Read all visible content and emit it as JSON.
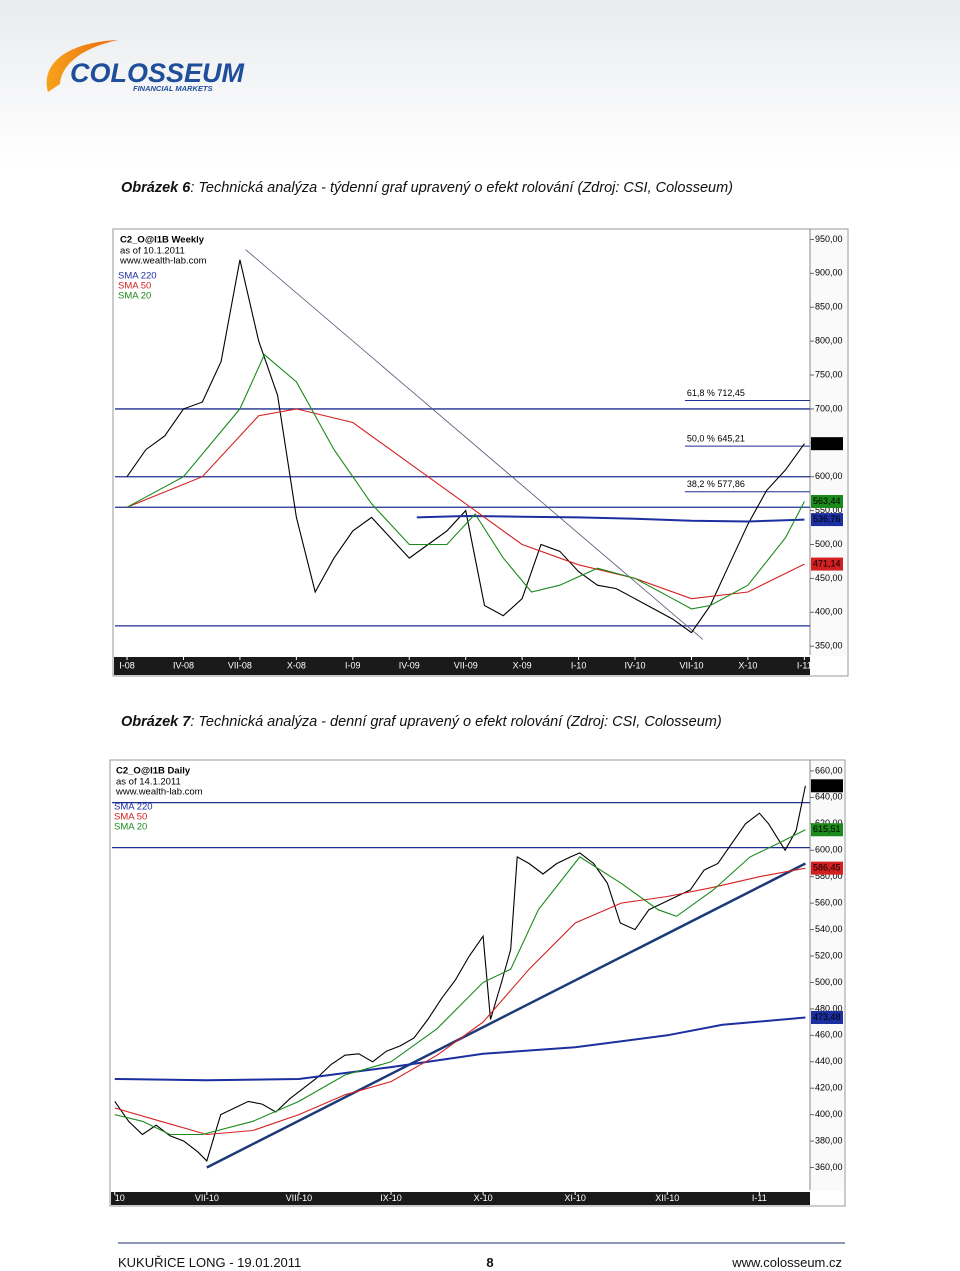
{
  "header": {
    "logo": "COLOSSEUM",
    "logo_sub": "FINANCIAL MARKETS"
  },
  "figures": [
    {
      "caption_label": "Obrázek 6",
      "caption": ": Technická analýza - týdenní graf upravený o efekt rolování (Zdroj: CSI, Colosseum)",
      "chart_data": {
        "type": "line",
        "title": "C2_O@I1B Weekly",
        "subtitle": "as of 10.1.2011",
        "source": "www.wealth-lab.com",
        "xlim": [
          -0.64,
          36.3
        ],
        "ylim": [
          337,
          961
        ],
        "xticks": [
          {
            "value": 0,
            "label": "I-08"
          },
          {
            "value": 3,
            "label": "IV-08"
          },
          {
            "value": 6,
            "label": "VII-08"
          },
          {
            "value": 9,
            "label": "X-08"
          },
          {
            "value": 12,
            "label": "I-09"
          },
          {
            "value": 15,
            "label": "IV-09"
          },
          {
            "value": 18,
            "label": "VII-09"
          },
          {
            "value": 21,
            "label": "X-09"
          },
          {
            "value": 24,
            "label": "I-10"
          },
          {
            "value": 27,
            "label": "IV-10"
          },
          {
            "value": 30,
            "label": "VII-10"
          },
          {
            "value": 33,
            "label": "X-10"
          },
          {
            "value": 36,
            "label": "I-11"
          }
        ],
        "yticks": [
          {
            "value": 350,
            "label": "350,00"
          },
          {
            "value": 400,
            "label": "400,00"
          },
          {
            "value": 450,
            "label": "450,00"
          },
          {
            "value": 500,
            "label": "500,00"
          },
          {
            "value": 550,
            "label": "550,00"
          },
          {
            "value": 600,
            "label": "600,00"
          },
          {
            "value": 650,
            "label": "650,00"
          },
          {
            "value": 700,
            "label": "700,00"
          },
          {
            "value": 750,
            "label": "750,00"
          },
          {
            "value": 800,
            "label": "800,00"
          },
          {
            "value": 850,
            "label": "850,00"
          },
          {
            "value": 900,
            "label": "900,00"
          },
          {
            "value": 950,
            "label": "950,00"
          }
        ],
        "series": [
          {
            "color": "#000000",
            "x": [
              0,
              1,
              2,
              3,
              4,
              5,
              6,
              7,
              8,
              9,
              10,
              11,
              12,
              13,
              14,
              15,
              16,
              17,
              18,
              19,
              20,
              21,
              22,
              23,
              24,
              25,
              26,
              27,
              28,
              29,
              30,
              31,
              32,
              33,
              34,
              35,
              36
            ],
            "values": [
              600,
              640,
              660,
              700,
              710,
              770,
              920,
              800,
              720,
              540,
              430,
              480,
              520,
              540,
              510,
              480,
              500,
              520,
              550,
              410,
              395,
              420,
              500,
              490,
              460,
              440,
              435,
              420,
              405,
              390,
              370,
              410,
              470,
              530,
              580,
              610,
              648.75
            ]
          },
          {
            "name": "SMA 220",
            "color": "#1c2fa0",
            "x": [
              15.4,
              18,
              21,
              24,
              27,
              30,
              33,
              36
            ],
            "values": [
              540,
              542,
              541,
              540,
              538,
              535,
              534,
              536.76
            ]
          },
          {
            "name": "SMA 50",
            "color": "#d42020",
            "x": [
              0,
              4,
              7,
              9,
              12,
              15,
              18,
              21,
              24,
              27,
              30,
              33,
              36
            ],
            "values": [
              555,
              600,
              690,
              700,
              680,
              620,
              560,
              500,
              470,
              450,
              420,
              430,
              471.14
            ]
          },
          {
            "name": "SMA 20",
            "color": "#1a8a1a",
            "x": [
              0,
              3,
              6,
              7.3,
              9,
              11,
              13,
              15,
              17,
              18.5,
              20,
              21.5,
              23,
              25,
              27,
              29,
              30,
              31,
              33,
              35,
              36
            ],
            "values": [
              555,
              600,
              700,
              780,
              740,
              640,
              560,
              500,
              500,
              545,
              480,
              430,
              440,
              465,
              450,
              420,
              405,
              410,
              440,
              510,
              563.44
            ]
          }
        ],
        "trendline": {
          "color": "#555577",
          "x": [
            6.3,
            30.6
          ],
          "values": [
            935,
            360
          ]
        },
        "hlines": [
          700,
          600,
          555,
          380
        ],
        "fibonacci": [
          {
            "label": "61,8 % 712,45",
            "value": 712.45
          },
          {
            "label": "50,0 % 645,21",
            "value": 645.21
          },
          {
            "label": "38,2 % 577,86",
            "value": 577.86
          }
        ],
        "value_labels": [
          {
            "label": "648,75",
            "value": 648.75,
            "color": "#000000"
          },
          {
            "label": "563,44",
            "value": 563.44,
            "color": "#1a8a1a"
          },
          {
            "label": "536,76",
            "value": 536.76,
            "color": "#1c2fa0"
          },
          {
            "label": "471,14",
            "value": 471.14,
            "color": "#d42020"
          }
        ]
      }
    },
    {
      "caption_label": "Obrázek 7",
      "caption": ": Technická analýza - denní graf upravený o efekt rolování (Zdroj: CSI, Colosseum)",
      "chart_data": {
        "type": "line",
        "title": "C2_O@I1B Daily",
        "subtitle": "as of 14.1.2011",
        "source": "www.wealth-lab.com",
        "xlim": [
          -1.03,
          6.55
        ],
        "ylim": [
          343,
          666
        ],
        "xticks": [
          {
            "value": -1,
            "label": "10"
          },
          {
            "value": 0,
            "label": "VII-10"
          },
          {
            "value": 1,
            "label": "VIII-10"
          },
          {
            "value": 2,
            "label": "IX-10"
          },
          {
            "value": 3,
            "label": "X-10"
          },
          {
            "value": 4,
            "label": "XI-10"
          },
          {
            "value": 5,
            "label": "XII-10"
          },
          {
            "value": 6,
            "label": "I-11"
          }
        ],
        "yticks": [
          {
            "value": 360,
            "label": "360,00"
          },
          {
            "value": 380,
            "label": "380,00"
          },
          {
            "value": 400,
            "label": "400,00"
          },
          {
            "value": 420,
            "label": "420,00"
          },
          {
            "value": 440,
            "label": "440,00"
          },
          {
            "value": 460,
            "label": "460,00"
          },
          {
            "value": 480,
            "label": "480,00"
          },
          {
            "value": 500,
            "label": "500,00"
          },
          {
            "value": 520,
            "label": "520,00"
          },
          {
            "value": 540,
            "label": "540,00"
          },
          {
            "value": 560,
            "label": "560,00"
          },
          {
            "value": 580,
            "label": "580,00"
          },
          {
            "value": 600,
            "label": "600,00"
          },
          {
            "value": 620,
            "label": "620,00"
          },
          {
            "value": 640,
            "label": "640,00"
          },
          {
            "value": 660,
            "label": "660,00"
          }
        ],
        "series": [
          {
            "color": "#000000",
            "x": [
              -1,
              -0.85,
              -0.7,
              -0.55,
              -0.4,
              -0.25,
              -0.1,
              0,
              0.15,
              0.3,
              0.45,
              0.6,
              0.75,
              0.9,
              1.05,
              1.2,
              1.35,
              1.5,
              1.65,
              1.8,
              1.95,
              2.1,
              2.25,
              2.4,
              2.55,
              2.7,
              2.85,
              3.0,
              3.08,
              3.2,
              3.3,
              3.37,
              3.5,
              3.65,
              3.8,
              3.95,
              4.05,
              4.2,
              4.35,
              4.49,
              4.65,
              4.8,
              4.95,
              5.1,
              5.25,
              5.4,
              5.55,
              5.7,
              5.85,
              6.0,
              6.1,
              6.28,
              6.4,
              6.5
            ],
            "values": [
              410,
              395,
              385,
              392,
              384,
              380,
              372,
              365,
              400,
              405,
              410,
              408,
              402,
              412,
              420,
              428,
              438,
              445,
              446,
              440,
              448,
              452,
              458,
              472,
              488,
              502,
              520,
              535,
              472,
              500,
              525,
              595,
              590,
              582,
              590,
              595,
              598,
              590,
              575,
              545,
              540,
              555,
              560,
              565,
              570,
              585,
              590,
              605,
              620,
              628,
              620,
              600,
              615,
              648.75
            ]
          },
          {
            "name": "SMA 220",
            "color": "#1c2fa0",
            "x": [
              -1,
              0,
              1,
              2,
              3,
              4,
              5,
              5.6,
              6.5
            ],
            "values": [
              427,
              426,
              427,
              436,
              446,
              451,
              460,
              468,
              473.48
            ]
          },
          {
            "name": "SMA 50",
            "color": "#d42020",
            "x": [
              -1,
              -0.5,
              0,
              0.5,
              1,
              1.5,
              2,
              2.5,
              3,
              3.5,
              4,
              4.5,
              5,
              5.5,
              6,
              6.5
            ],
            "values": [
              405,
              395,
              385,
              388,
              400,
              415,
              425,
              445,
              470,
              510,
              545,
              560,
              565,
              572,
              580,
              586.45
            ]
          },
          {
            "name": "SMA 20",
            "color": "#1a8a1a",
            "x": [
              -1,
              -0.7,
              -0.4,
              -0.05,
              0.5,
              1,
              1.5,
              2,
              2.5,
              3,
              3.3,
              3.6,
              4.05,
              4.5,
              4.9,
              5.1,
              5.5,
              5.9,
              6.2,
              6.5
            ],
            "values": [
              400,
              395,
              385,
              385,
              395,
              410,
              430,
              440,
              465,
              500,
              510,
              555,
              595,
              575,
              555,
              550,
              570,
              595,
              605,
              615.51
            ]
          }
        ],
        "trendline": {
          "color": "#1c3a78",
          "x": [
            0,
            6.5
          ],
          "values": [
            360,
            590
          ]
        },
        "hlines": [
          636,
          602
        ],
        "value_labels": [
          {
            "label": "648,75",
            "value": 648.75,
            "color": "#000000"
          },
          {
            "label": "615,51",
            "value": 615.51,
            "color": "#1a8a1a"
          },
          {
            "label": "586,45",
            "value": 586.45,
            "color": "#d42020"
          },
          {
            "label": "473,48",
            "value": 473.48,
            "color": "#1c2fa0"
          }
        ]
      }
    }
  ],
  "footer": {
    "left": "KUKUŘICE LONG - 19.01.2011",
    "page": "8",
    "right": "www.colosseum.cz"
  }
}
